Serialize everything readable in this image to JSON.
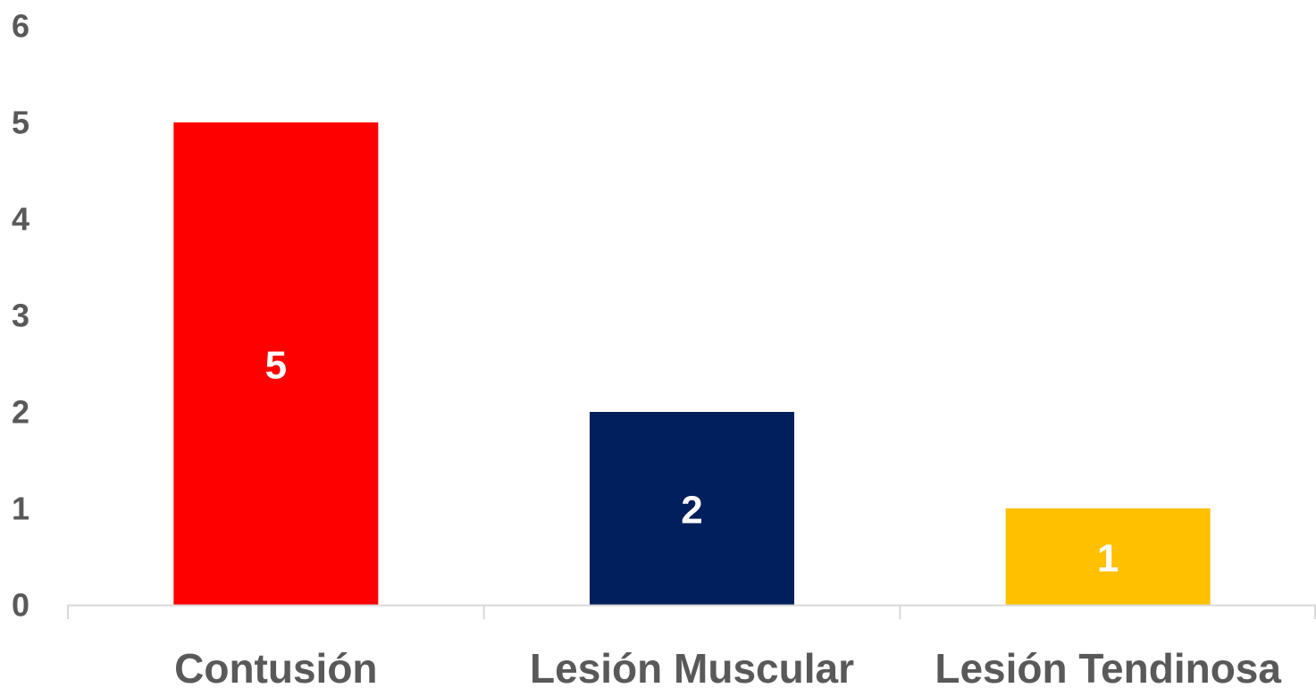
{
  "chart_data": {
    "type": "bar",
    "categories": [
      "Contusión",
      "Lesión Muscular",
      "Lesión Tendinosa"
    ],
    "values": [
      5,
      2,
      1
    ],
    "data_labels": [
      "5",
      "2",
      "1"
    ],
    "bar_colors": [
      "#ff0000",
      "#001f5c",
      "#ffc000"
    ],
    "title": "",
    "xlabel": "",
    "ylabel": "",
    "ylim": [
      0,
      6
    ],
    "yticks": [
      0,
      1,
      2,
      3,
      4,
      5,
      6
    ],
    "ytick_labels": [
      "0",
      "1",
      "2",
      "3",
      "4",
      "5",
      "6"
    ],
    "grid": false,
    "legend": "none",
    "axis_color": "#d9d9d9",
    "text_color": "#595959"
  }
}
